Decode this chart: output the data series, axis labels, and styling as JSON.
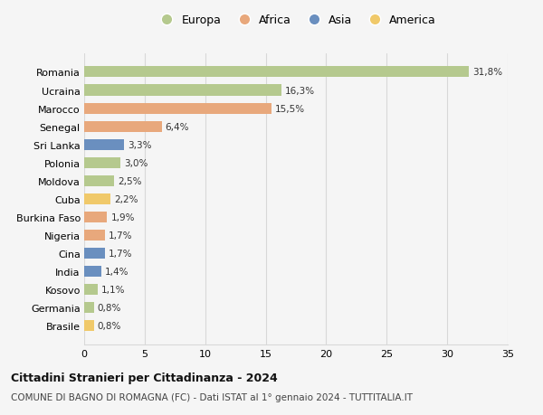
{
  "countries": [
    "Romania",
    "Ucraina",
    "Marocco",
    "Senegal",
    "Sri Lanka",
    "Polonia",
    "Moldova",
    "Cuba",
    "Burkina Faso",
    "Nigeria",
    "Cina",
    "India",
    "Kosovo",
    "Germania",
    "Brasile"
  ],
  "values": [
    31.8,
    16.3,
    15.5,
    6.4,
    3.3,
    3.0,
    2.5,
    2.2,
    1.9,
    1.7,
    1.7,
    1.4,
    1.1,
    0.8,
    0.8
  ],
  "labels": [
    "31,8%",
    "16,3%",
    "15,5%",
    "6,4%",
    "3,3%",
    "3,0%",
    "2,5%",
    "2,2%",
    "1,9%",
    "1,7%",
    "1,7%",
    "1,4%",
    "1,1%",
    "0,8%",
    "0,8%"
  ],
  "continents": [
    "Europa",
    "Europa",
    "Africa",
    "Africa",
    "Asia",
    "Europa",
    "Europa",
    "America",
    "Africa",
    "Africa",
    "Asia",
    "Asia",
    "Europa",
    "Europa",
    "America"
  ],
  "continent_colors": {
    "Europa": "#b5c98e",
    "Africa": "#e8a87c",
    "Asia": "#6a8fbf",
    "America": "#f0c96a"
  },
  "legend_order": [
    "Europa",
    "Africa",
    "Asia",
    "America"
  ],
  "title": "Cittadini Stranieri per Cittadinanza - 2024",
  "subtitle": "COMUNE DI BAGNO DI ROMAGNA (FC) - Dati ISTAT al 1° gennaio 2024 - TUTTITALIA.IT",
  "xlim": [
    0,
    35
  ],
  "xticks": [
    0,
    5,
    10,
    15,
    20,
    25,
    30,
    35
  ],
  "background_color": "#f5f5f5",
  "grid_color": "#d8d8d8",
  "bar_height": 0.6,
  "label_fontsize": 7.5,
  "ytick_fontsize": 8,
  "xtick_fontsize": 8,
  "legend_fontsize": 9,
  "title_fontsize": 9,
  "subtitle_fontsize": 7.5
}
